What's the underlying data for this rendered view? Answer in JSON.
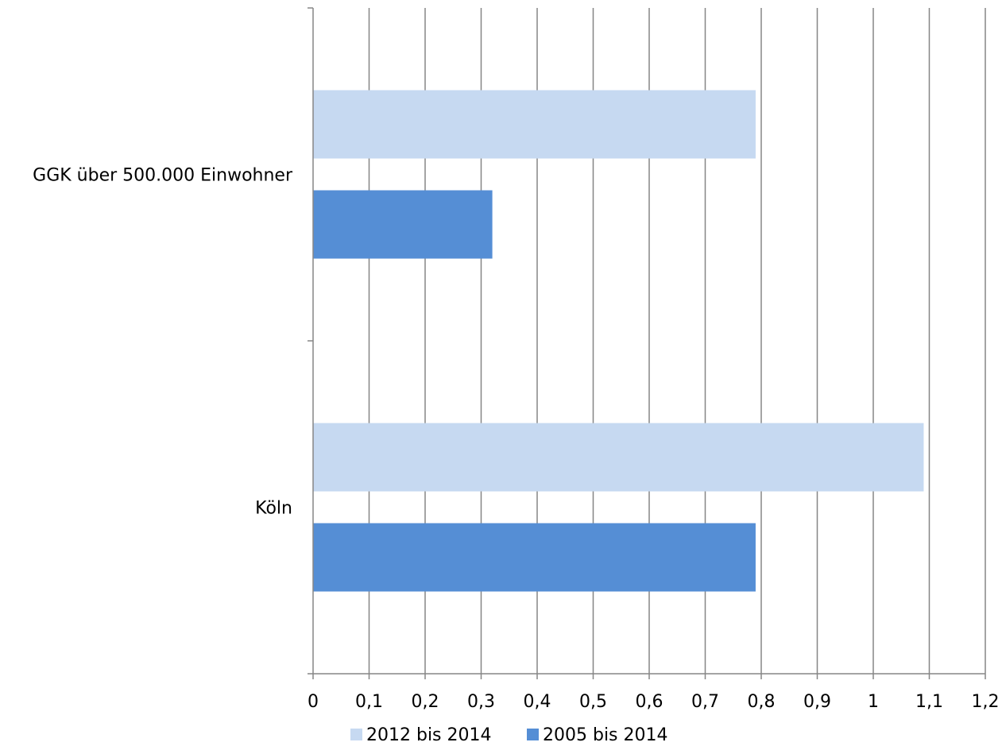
{
  "chart_data": {
    "type": "bar",
    "orientation": "horizontal",
    "categories": [
      "GGK über 500.000 Einwohner",
      "Köln"
    ],
    "series": [
      {
        "name": "2012 bis 2014",
        "values": [
          0.79,
          1.09
        ],
        "color": "#c6d9f1"
      },
      {
        "name": "2005 bis 2014",
        "values": [
          0.32,
          0.79
        ],
        "color": "#558ed5"
      }
    ],
    "xlim": [
      0,
      1.2
    ],
    "xticks": [
      "0",
      "0,1",
      "0,2",
      "0,3",
      "0,4",
      "0,5",
      "0,6",
      "0,7",
      "0,8",
      "0,9",
      "1",
      "1,1",
      "1,2"
    ],
    "grid": true,
    "legend_position": "bottom",
    "title": "",
    "xlabel": "",
    "ylabel": ""
  }
}
